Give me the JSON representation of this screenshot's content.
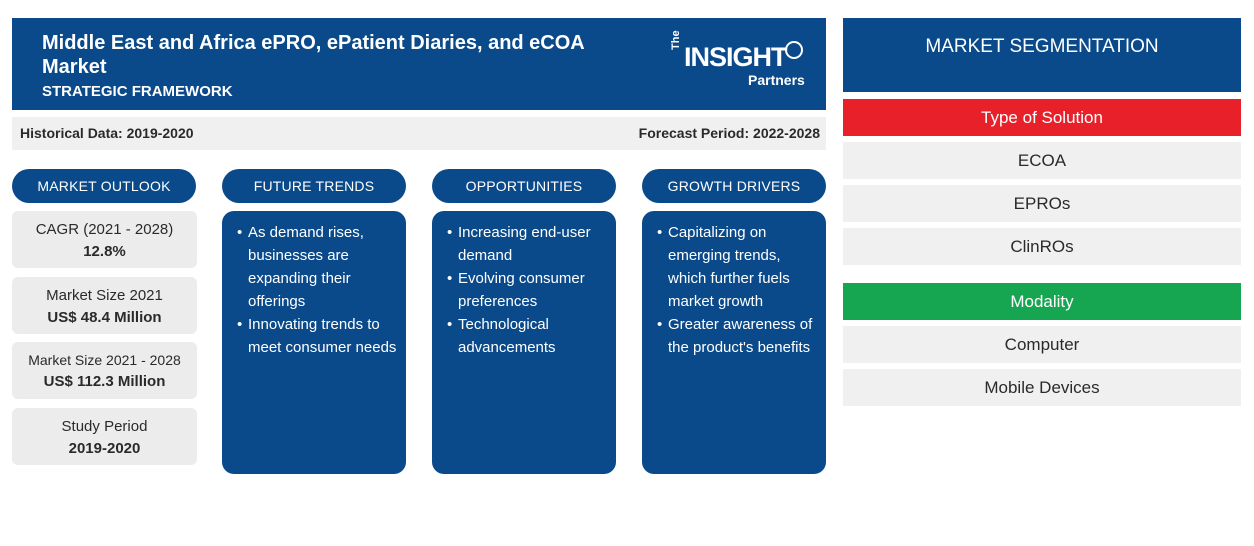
{
  "header": {
    "title": "Middle East and Africa ePRO, ePatient Diaries, and eCOA Market",
    "subtitle": "STRATEGIC FRAMEWORK",
    "logo": {
      "the": "The",
      "main": "INSIGHT",
      "partners": "Partners"
    }
  },
  "info": {
    "historical": "Historical Data: 2019-2020",
    "forecast": "Forecast Period: 2022-2028"
  },
  "columns": {
    "outlook": "MARKET OUTLOOK",
    "trends": "FUTURE TRENDS",
    "opportunities": "OPPORTUNITIES",
    "drivers": "GROWTH DRIVERS"
  },
  "outlook": [
    {
      "label": "CAGR (2021 - 2028)",
      "value": "12.8%"
    },
    {
      "label": "Market Size 2021",
      "value": "US$ 48.4 Million"
    },
    {
      "label": "Market Size 2021 - 2028",
      "value": "US$ 112.3 Million"
    },
    {
      "label": "Study Period",
      "value": "2019-2020"
    }
  ],
  "trends": [
    "As demand rises, businesses are expanding their offerings",
    "Innovating trends to meet consumer needs"
  ],
  "opportunities": [
    "Increasing end-user demand",
    "Evolving consumer preferences",
    "Technological advancements"
  ],
  "drivers": [
    "Capitalizing on emerging trends, which further fuels market growth",
    "Greater awareness of the product's benefits"
  ],
  "segmentation": {
    "title": "MARKET SEGMENTATION",
    "type_label": "Type of Solution",
    "type_color": "#e8202a",
    "type_items": [
      "ECOA",
      "EPROs",
      "ClinROs"
    ],
    "modality_label": "Modality",
    "modality_color": "#16a550",
    "modality_items": [
      "Computer",
      "Mobile Devices"
    ]
  },
  "colors": {
    "primary": "#0a4a8a",
    "light": "#f0f0f0"
  }
}
